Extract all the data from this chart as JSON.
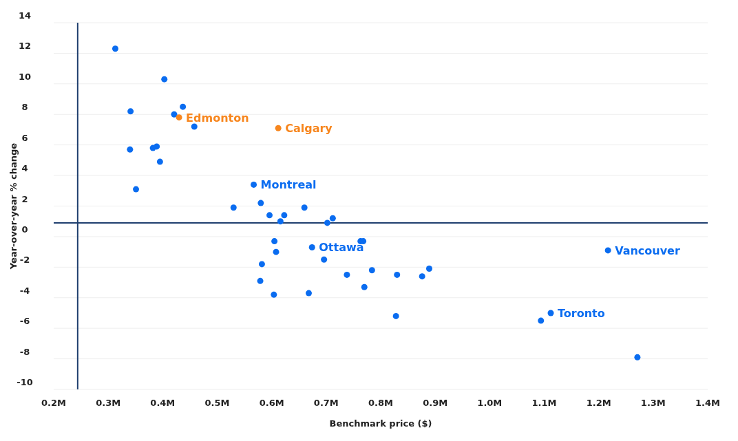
{
  "chart_data": {
    "type": "scatter",
    "xlabel": "Benchmark price ($)",
    "ylabel": "Year-over-year % change",
    "xlim": [
      0.2,
      1.4
    ],
    "ylim": [
      -10,
      14
    ],
    "xticks": [
      {
        "value": 0.2,
        "label": "0.2M"
      },
      {
        "value": 0.3,
        "label": "0.3M"
      },
      {
        "value": 0.4,
        "label": "0.4M"
      },
      {
        "value": 0.5,
        "label": "0.5M"
      },
      {
        "value": 0.6,
        "label": "0.6M"
      },
      {
        "value": 0.7,
        "label": "0.7M"
      },
      {
        "value": 0.8,
        "label": "0.8M"
      },
      {
        "value": 0.9,
        "label": "0.9M"
      },
      {
        "value": 1.0,
        "label": "1.0M"
      },
      {
        "value": 1.1,
        "label": "1.1M"
      },
      {
        "value": 1.2,
        "label": "1.2M"
      },
      {
        "value": 1.3,
        "label": "1.3M"
      },
      {
        "value": 1.4,
        "label": "1.4M"
      }
    ],
    "yticks": [
      -10,
      -8,
      -6,
      -4,
      -2,
      0,
      2,
      4,
      6,
      8,
      10,
      12,
      14
    ],
    "grid": "y",
    "marker": "circle",
    "series": [
      {
        "color": "#0a6cf0",
        "x": [
          0.313,
          0.403,
          0.341,
          0.437,
          0.421,
          0.458,
          0.34,
          0.382,
          0.389,
          0.395,
          0.351,
          0.567,
          0.53,
          0.58,
          0.596,
          0.623,
          0.616,
          0.66,
          0.702,
          0.712,
          0.605,
          0.674,
          0.763,
          0.768,
          0.608,
          0.696,
          0.582,
          0.579,
          0.604,
          0.668,
          0.738,
          0.784,
          0.77,
          0.83,
          0.876,
          0.889,
          0.828,
          1.217,
          1.112,
          1.094,
          1.271
        ],
        "values": [
          12.3,
          10.3,
          8.2,
          8.5,
          8.0,
          7.2,
          5.7,
          5.8,
          5.9,
          4.9,
          3.1,
          3.4,
          1.9,
          2.2,
          1.4,
          1.4,
          1.0,
          1.9,
          0.9,
          1.2,
          -0.3,
          -0.7,
          -0.3,
          -0.3,
          -1.0,
          -1.5,
          -1.8,
          -2.9,
          -3.8,
          -3.7,
          -2.5,
          -2.2,
          -3.3,
          -2.5,
          -2.6,
          -2.1,
          -5.2,
          -0.9,
          -5.0,
          -5.5,
          -7.9
        ]
      },
      {
        "color": "#f7861e",
        "x": [
          0.43,
          0.612
        ],
        "values": [
          7.8,
          7.1
        ]
      }
    ],
    "ref_lines": [
      {
        "axis": "y",
        "value": 0.9,
        "color": "#1f3f6e"
      },
      {
        "axis": "x",
        "value": 0.244,
        "color": "#1f3f6e"
      }
    ],
    "annotations": [
      {
        "text": "Edmonton",
        "x": 0.43,
        "y": 7.8
      },
      {
        "text": "Calgary",
        "x": 0.612,
        "y": 7.1
      },
      {
        "text": "Montreal",
        "x": 0.567,
        "y": 3.4
      },
      {
        "text": "Ottawa",
        "x": 0.674,
        "y": -0.7
      },
      {
        "text": "Vancouver",
        "x": 1.217,
        "y": -0.9
      },
      {
        "text": "Toronto",
        "x": 1.112,
        "y": -5.0
      }
    ]
  }
}
